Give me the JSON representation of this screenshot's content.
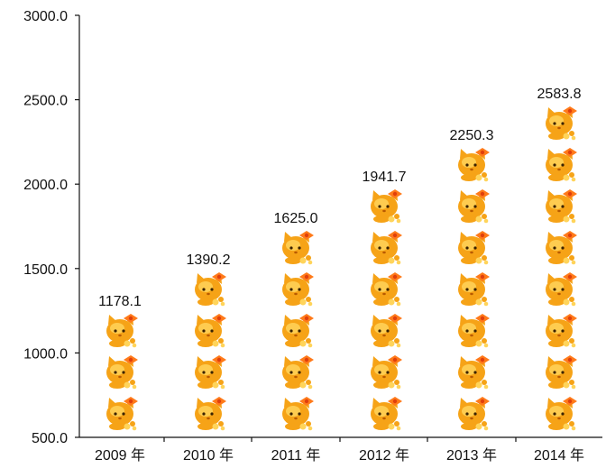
{
  "chart_data": {
    "type": "bar",
    "title": "",
    "xlabel": "",
    "ylabel": "",
    "categories": [
      "2009 年",
      "2010 年",
      "2011 年",
      "2012 年",
      "2013 年",
      "2014 年"
    ],
    "values": [
      1178.1,
      1390.2,
      1625.0,
      1941.7,
      2250.3,
      2583.8
    ],
    "value_labels": [
      "1178.1",
      "1390.2",
      "1625.0",
      "1941.7",
      "2250.3",
      "2583.8"
    ],
    "ylim": [
      500,
      3000
    ],
    "y_ticks": [
      "500.0",
      "1000.0",
      "1500.0",
      "2000.0",
      "2500.0",
      "3000.0"
    ],
    "y_tick_values": [
      500,
      1000,
      1500,
      2000,
      2500,
      3000
    ],
    "icon_unit": 250,
    "icon": "cat-face-icon",
    "grid": false,
    "colors": {
      "icon_body": "#f6a317",
      "icon_highlight": "#ffd45a",
      "icon_bow": "#ff7a1a",
      "axis": "#111111"
    }
  }
}
